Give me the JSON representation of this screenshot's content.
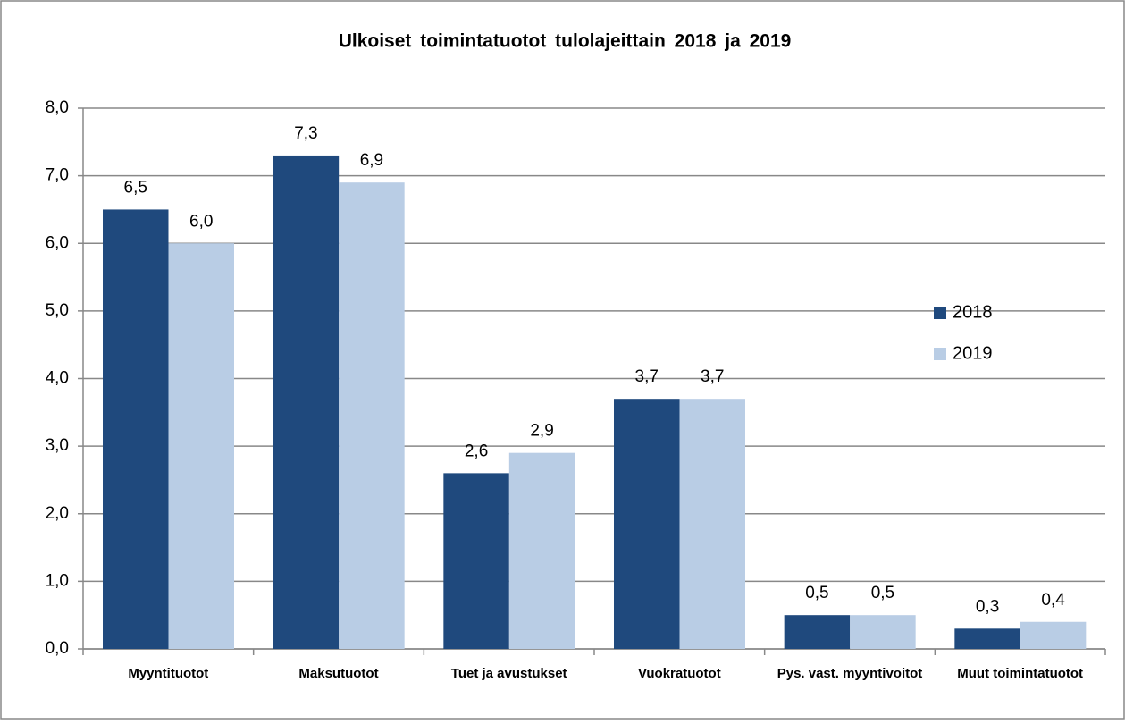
{
  "chart_data": {
    "type": "bar",
    "title": "Ulkoiset toimintatuotot tulolajeittain 2018 ja 2019",
    "categories": [
      "Myyntituotot",
      "Maksutuotot",
      "Tuet ja avustukset",
      "Vuokratuotot",
      "Pys. vast. myyntivoitot",
      "Muut toimintatuotot"
    ],
    "series": [
      {
        "name": "2018",
        "color": "#1f497d",
        "values": [
          6.5,
          7.3,
          2.6,
          3.7,
          0.5,
          0.3
        ],
        "value_labels": [
          "6,5",
          "7,3",
          "2,6",
          "3,7",
          "0,5",
          "0,3"
        ]
      },
      {
        "name": "2019",
        "color": "#b9cde5",
        "values": [
          6.0,
          6.9,
          2.9,
          3.7,
          0.5,
          0.4
        ],
        "value_labels": [
          "6,0",
          "6,9",
          "2,9",
          "3,7",
          "0,5",
          "0,4"
        ]
      }
    ],
    "ylim": [
      0,
      8
    ],
    "yticks": [
      {
        "value": 0,
        "label": "0,0"
      },
      {
        "value": 1,
        "label": "1,0"
      },
      {
        "value": 2,
        "label": "2,0"
      },
      {
        "value": 3,
        "label": "3,0"
      },
      {
        "value": 4,
        "label": "4,0"
      },
      {
        "value": 5,
        "label": "5,0"
      },
      {
        "value": 6,
        "label": "6,0"
      },
      {
        "value": 7,
        "label": "7,0"
      },
      {
        "value": 8,
        "label": "8,0"
      }
    ],
    "grid": true,
    "legend": "right"
  }
}
